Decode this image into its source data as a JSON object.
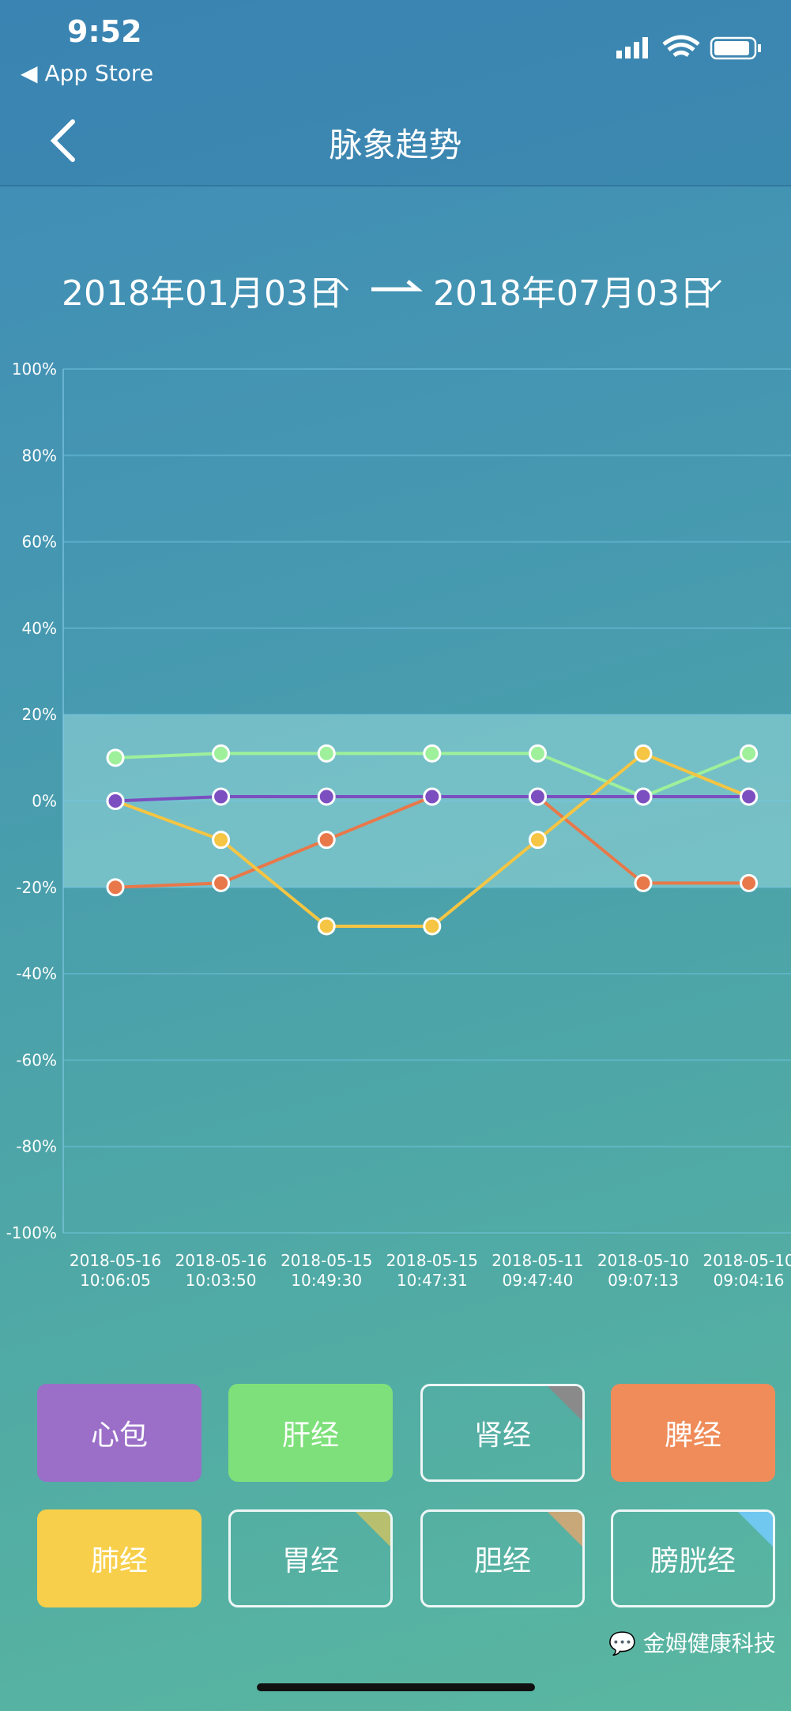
{
  "status_bar": {
    "time": "9:52",
    "back_app": "App Store"
  },
  "header": {
    "title": "脉象趋势"
  },
  "date_range": {
    "start": "2018年01月03日",
    "end": "2018年07月03日"
  },
  "chart_data": {
    "type": "line",
    "categories": [
      "2018-05-16 10:06:05",
      "2018-05-16 10:03:50",
      "2018-05-15 10:49:30",
      "2018-05-15 10:47:31",
      "2018-05-11 09:47:40",
      "2018-05-10 09:07:13",
      "2018-05-10 09:04:16"
    ],
    "series": [
      {
        "name": "肝经",
        "color": "#9ef09a",
        "values": [
          10,
          11,
          11,
          11,
          11,
          1,
          11
        ]
      },
      {
        "name": "脾经",
        "color": "#e8784a",
        "values": [
          -20,
          -19,
          -9,
          1,
          1,
          -19,
          -19
        ]
      },
      {
        "name": "肺经",
        "color": "#f5c543",
        "values": [
          0,
          -9,
          -29,
          -29,
          -9,
          11,
          1
        ]
      },
      {
        "name": "心包",
        "color": "#7b4fc0",
        "values": [
          0,
          1,
          1,
          1,
          1,
          1,
          1
        ]
      }
    ],
    "ylim": [
      -100,
      100
    ],
    "yticks": [
      {
        "value": 100,
        "label": "100%"
      },
      {
        "value": 80,
        "label": "80%"
      },
      {
        "value": 60,
        "label": "60%"
      },
      {
        "value": 40,
        "label": "40%"
      },
      {
        "value": 20,
        "label": "20%"
      },
      {
        "value": 0,
        "label": "0%"
      },
      {
        "value": -20,
        "label": "-20%"
      },
      {
        "value": -40,
        "label": "-40%"
      },
      {
        "value": -60,
        "label": "-60%"
      },
      {
        "value": -80,
        "label": "-80%"
      },
      {
        "value": -100,
        "label": "-100%"
      }
    ],
    "normal_band": [
      -20,
      20
    ],
    "grid": true
  },
  "other_meridians": [
    "肾经",
    "胃经",
    "胆经",
    "膀胱经"
  ],
  "watermark": "金姆健康科技"
}
